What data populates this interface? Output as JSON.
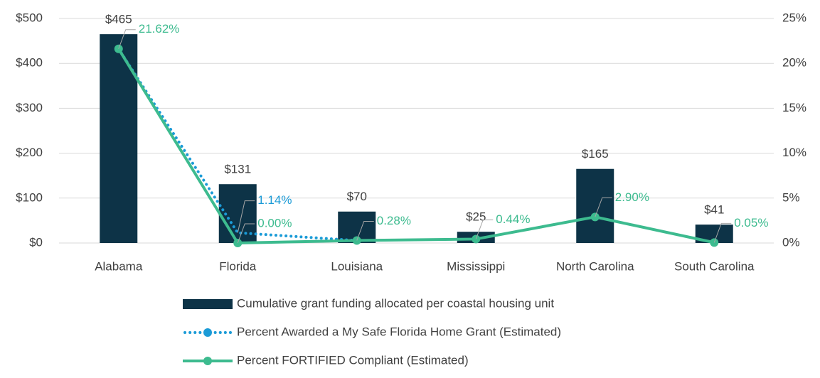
{
  "chart_data": {
    "type": "combo",
    "categories": [
      "Alabama",
      "Florida",
      "Louisiana",
      "Mississippi",
      "North Carolina",
      "South Carolina"
    ],
    "ylim": [
      0,
      500
    ],
    "yticks": [
      {
        "value": 0,
        "label": "$0"
      },
      {
        "value": 100,
        "label": "$100"
      },
      {
        "value": 200,
        "label": "$200"
      },
      {
        "value": 300,
        "label": "$300"
      },
      {
        "value": 400,
        "label": "$400"
      },
      {
        "value": 500,
        "label": "$500"
      }
    ],
    "y2lim": [
      0,
      25
    ],
    "y2ticks": [
      {
        "value": 0,
        "label": "0%"
      },
      {
        "value": 5,
        "label": "5%"
      },
      {
        "value": 10,
        "label": "10%"
      },
      {
        "value": 15,
        "label": "15%"
      },
      {
        "value": 20,
        "label": "20%"
      },
      {
        "value": 25,
        "label": "25%"
      }
    ],
    "grid": true,
    "legend": "bottom",
    "series": [
      {
        "name": "Cumulative grant funding allocated per coastal housing unit",
        "type": "bar",
        "color": "#0d3347",
        "values": [
          465,
          131,
          70,
          25,
          165,
          41
        ],
        "value_labels": [
          "$465",
          "$131",
          "$70",
          "$25",
          "$165",
          "$41"
        ]
      },
      {
        "name": "Percent Awarded a My Safe Florida Home Grant (Estimated)",
        "type": "dotted",
        "axis": "y2",
        "color": "#1b9bd7",
        "values": [
          21.62,
          1.14,
          0.28,
          null,
          null,
          null
        ],
        "value_labels": [
          null,
          "1.14%",
          null,
          null,
          null,
          null
        ]
      },
      {
        "name": "Percent FORTIFIED Compliant (Estimated)",
        "type": "line",
        "axis": "y2",
        "color": "#3dbb8f",
        "values": [
          21.62,
          0,
          0.28,
          0.44,
          2.9,
          0.05
        ],
        "value_labels": [
          "21.62%",
          "0.00%",
          "0.28%",
          "0.44%",
          "2.90%",
          "0.05%"
        ]
      }
    ]
  }
}
